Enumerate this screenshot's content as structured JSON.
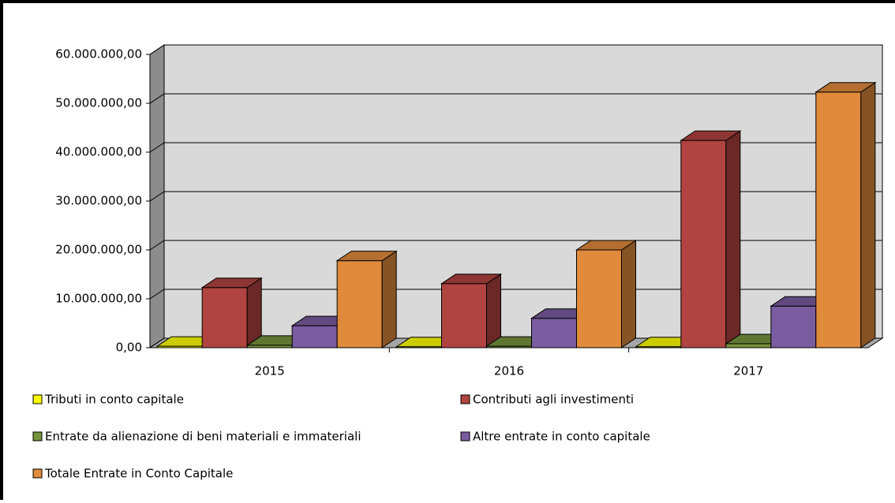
{
  "chart_data": {
    "type": "bar3d",
    "categories": [
      "2015",
      "2016",
      "2017"
    ],
    "series": [
      {
        "name": "Tributi in conto capitale",
        "color": "#ffff00",
        "values": [
          300000,
          200000,
          200000
        ]
      },
      {
        "name": "Contributi agli investimenti",
        "color": "#b04440",
        "values": [
          12300000,
          13100000,
          42400000
        ]
      },
      {
        "name": "Entrate da alienazione di beni materiali e immateriali",
        "color": "#77933c",
        "values": [
          500000,
          300000,
          800000
        ]
      },
      {
        "name": "Altre entrate in conto capitale",
        "color": "#7a5ca0",
        "values": [
          4500000,
          6000000,
          8500000
        ]
      },
      {
        "name": "Totale Entrate in Conto Capitale",
        "color": "#e08a3c",
        "values": [
          17800000,
          20000000,
          52300000
        ]
      }
    ],
    "ylim": [
      0,
      60000000
    ],
    "yticks": [
      {
        "value": 0,
        "label": "0,00"
      },
      {
        "value": 10000000,
        "label": "10.000.000,00"
      },
      {
        "value": 20000000,
        "label": "20.000.000,00"
      },
      {
        "value": 30000000,
        "label": "30.000.000,00"
      },
      {
        "value": 40000000,
        "label": "40.000.000,00"
      },
      {
        "value": 50000000,
        "label": "50.000.000,00"
      },
      {
        "value": 60000000,
        "label": "60.000.000,00"
      }
    ],
    "grid": true
  }
}
